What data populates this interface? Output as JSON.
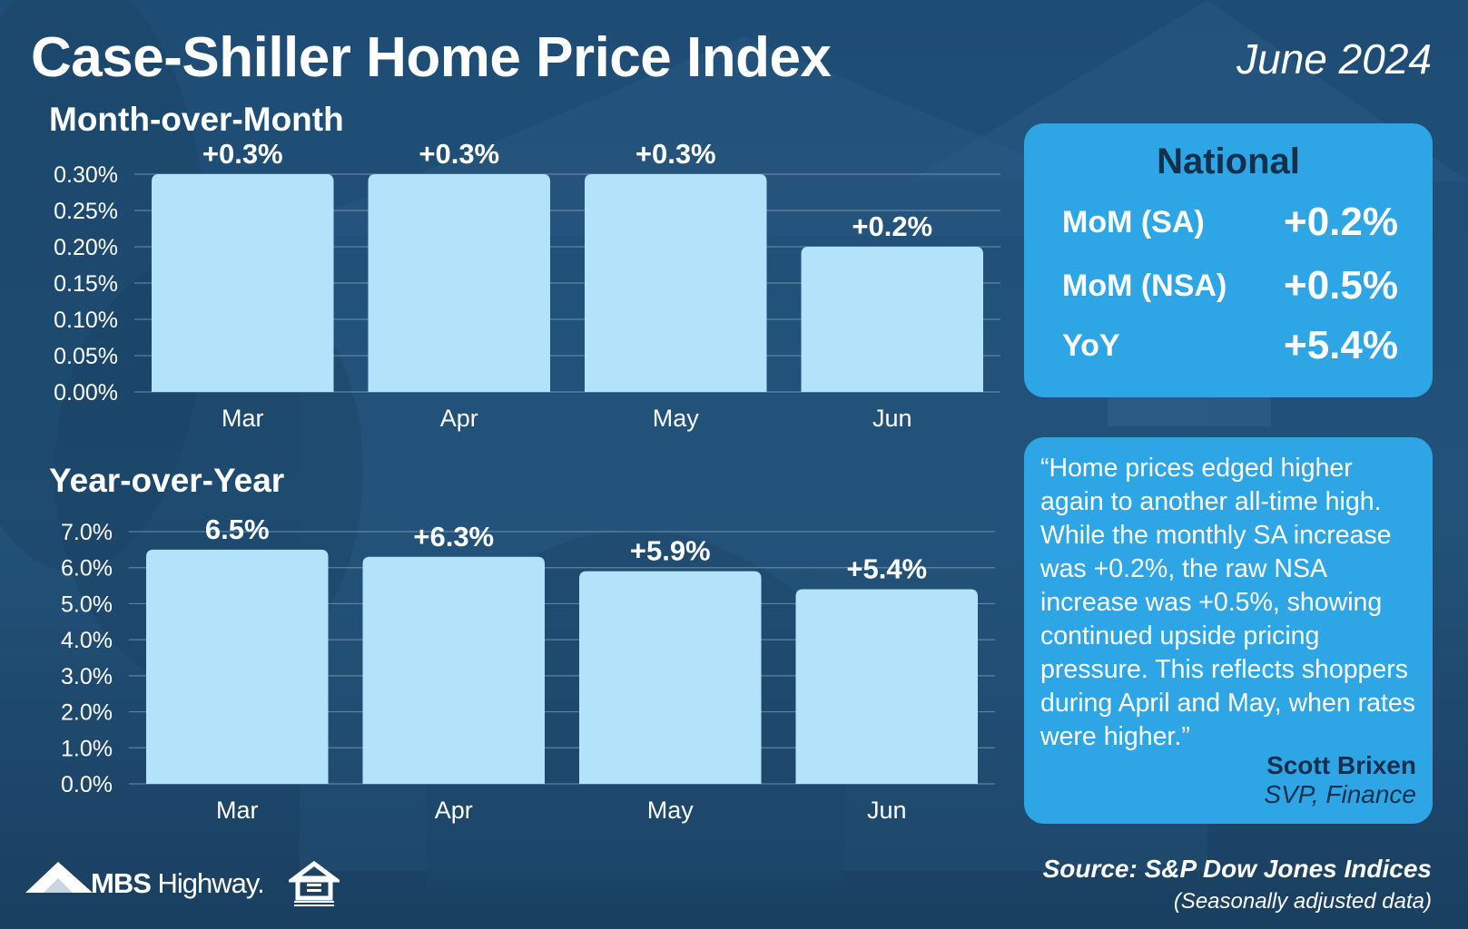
{
  "header": {
    "title": "Case-Shiller Home Price Index",
    "date": "June 2024"
  },
  "national": {
    "title": "National",
    "stats": [
      {
        "label": "MoM (SA)",
        "value": "+0.2%"
      },
      {
        "label": "MoM (NSA)",
        "value": "+0.5%"
      },
      {
        "label": "YoY",
        "value": "+5.4%"
      }
    ]
  },
  "quote": {
    "text": "“Home prices edged higher again to another all-time high. While the monthly SA increase was +0.2%, the raw NSA increase was +0.5%, showing continued upside pricing pressure. This reflects shoppers during April and May, when rates were higher.”",
    "author": "Scott Brixen",
    "role": "SVP, Finance"
  },
  "footer": {
    "source": "Source: S&P Dow Jones Indices",
    "note": "(Seasonally adjusted data)",
    "brand_bold": "MBS",
    "brand_rest": " Highway."
  },
  "colors": {
    "bar": "#b3e3fa",
    "panel": "#2ea6e6",
    "panel_title": "#12304d",
    "background": "#1f4e74"
  },
  "icons": {
    "brand": "mountain-logo-icon",
    "housing": "equal-housing-opportunity-icon"
  },
  "chart_data": [
    {
      "type": "bar",
      "title": "Month-over-Month",
      "categories": [
        "Mar",
        "Apr",
        "May",
        "Jun"
      ],
      "values": [
        0.3,
        0.3,
        0.3,
        0.2
      ],
      "data_labels": [
        "+0.3%",
        "+0.3%",
        "+0.3%",
        "+0.2%"
      ],
      "yticks": [
        "0.00%",
        "0.05%",
        "0.10%",
        "0.15%",
        "0.20%",
        "0.25%",
        "0.30%"
      ],
      "ylim": [
        0,
        0.3
      ],
      "grid": true
    },
    {
      "type": "bar",
      "title": "Year-over-Year",
      "categories": [
        "Mar",
        "Apr",
        "May",
        "Jun"
      ],
      "values": [
        6.5,
        6.3,
        5.9,
        5.4
      ],
      "data_labels": [
        "6.5%",
        "+6.3%",
        "+5.9%",
        "+5.4%"
      ],
      "yticks": [
        "0.0%",
        "1.0%",
        "2.0%",
        "3.0%",
        "4.0%",
        "5.0%",
        "6.0%",
        "7.0%"
      ],
      "ylim": [
        0,
        7
      ],
      "grid": true
    }
  ]
}
